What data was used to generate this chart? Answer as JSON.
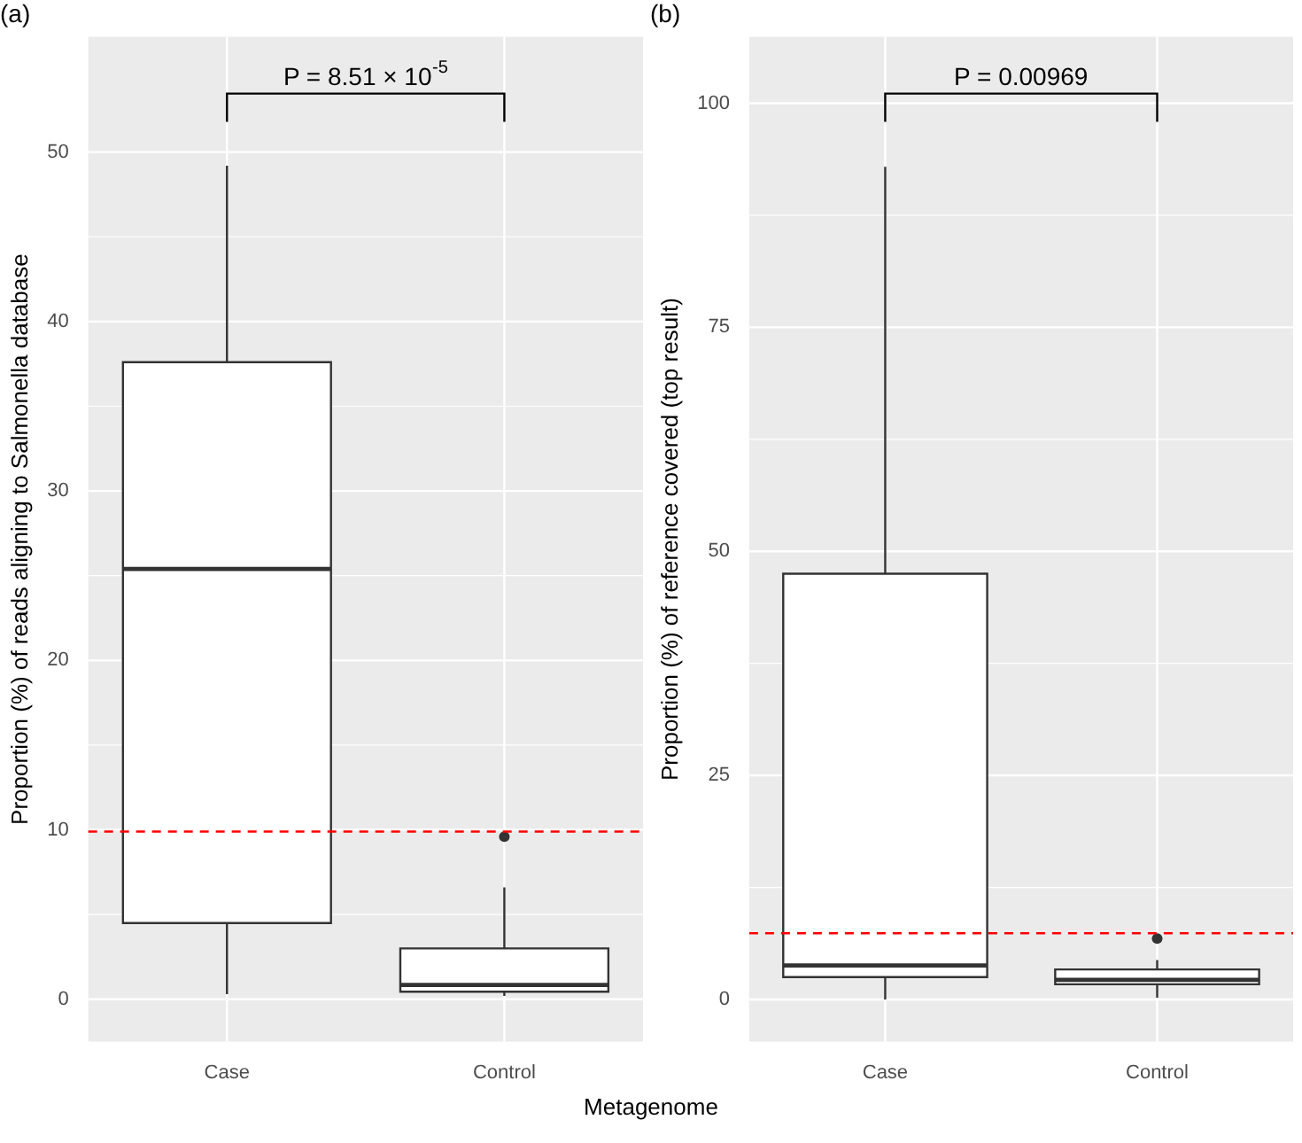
{
  "chart_data": [
    {
      "type": "box",
      "title": "(a)",
      "xlabel": "Metagenome",
      "ylabel": "Proportion (%) of reads aligning to Salmonella database",
      "categories": [
        "Case",
        "Control"
      ],
      "boxes": [
        {
          "low": 0.3,
          "q1": 4.5,
          "median": 25.4,
          "q3": 37.6,
          "high": 49.2
        },
        {
          "low": 0.2,
          "q1": 0.45,
          "median": 0.85,
          "q3": 3.0,
          "high": 6.6,
          "outliers": [
            9.6
          ]
        }
      ],
      "ylim": [
        -2.5,
        56.8
      ],
      "yticks": [
        0,
        10,
        20,
        30,
        40,
        50
      ],
      "grid": true,
      "ref_lines": [
        {
          "axis": "y",
          "value": 9.9,
          "color": "#ff0000",
          "line_style": "dashed"
        }
      ],
      "annotations": [
        "P = 8.51 × 10$^{-5}$"
      ]
    },
    {
      "type": "box",
      "title": "(b)",
      "ylabel": "Proportion (%) of reference covered (top result)",
      "categories": [
        "Case",
        "Control"
      ],
      "boxes": [
        {
          "low": 0,
          "q1": 2.5,
          "median": 3.8,
          "q3": 47.5,
          "high": 92.9
        },
        {
          "low": 0.2,
          "q1": 1.7,
          "median": 2.2,
          "q3": 3.35,
          "high": 4.4,
          "outliers": [
            6.8
          ]
        }
      ],
      "ylim": [
        -4.7,
        107.4
      ],
      "yticks": [
        0,
        25,
        50,
        75,
        100
      ],
      "grid": true,
      "ref_lines": [
        {
          "axis": "y",
          "value": 7.4,
          "color": "#ff0000",
          "line_style": "dashed"
        }
      ],
      "annotations": [
        "P = 0.00969"
      ]
    }
  ]
}
